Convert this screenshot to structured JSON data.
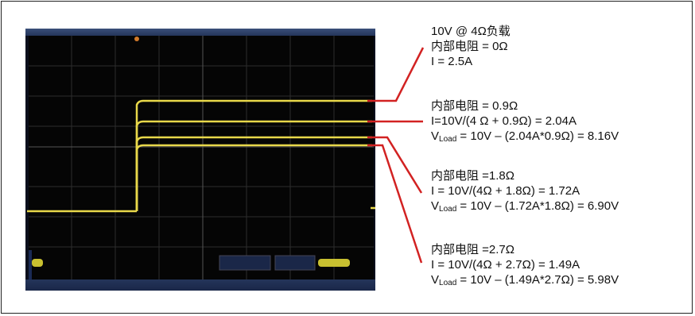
{
  "figure": {
    "annotation_blocks": [
      {
        "lines": [
          "10V @ 4Ω负载",
          "内部电阻 = 0Ω",
          "I = 2.5A"
        ]
      },
      {
        "lines": [
          "内部电阻 = 0.9Ω",
          "I=10V/(4 Ω + 0.9Ω) = 2.04A"
        ],
        "vload_prefix": "V",
        "vload_sub": "Load",
        "vload_rest": " = 10V  –  (2.04A*0.9Ω) = 8.16V"
      },
      {
        "lines": [
          "内部电阻 =1.8Ω",
          "I = 10V/(4Ω + 1.8Ω) = 1.72A"
        ],
        "vload_prefix": "V",
        "vload_sub": "Load",
        "vload_rest": " = 10V  –  (1.72A*1.8Ω) = 6.90V"
      },
      {
        "lines": [
          "内部电阻 =2.7Ω",
          "I = 10V/(4Ω + 2.7Ω) = 1.49A"
        ],
        "vload_prefix": "V",
        "vload_sub": "Load",
        "vload_rest": " = 10V  –  (1.49A*2.7Ω) = 5.98V"
      }
    ],
    "colors": {
      "trace": "#e8d84a",
      "leader": "#d22222",
      "frame": "#222222"
    }
  }
}
